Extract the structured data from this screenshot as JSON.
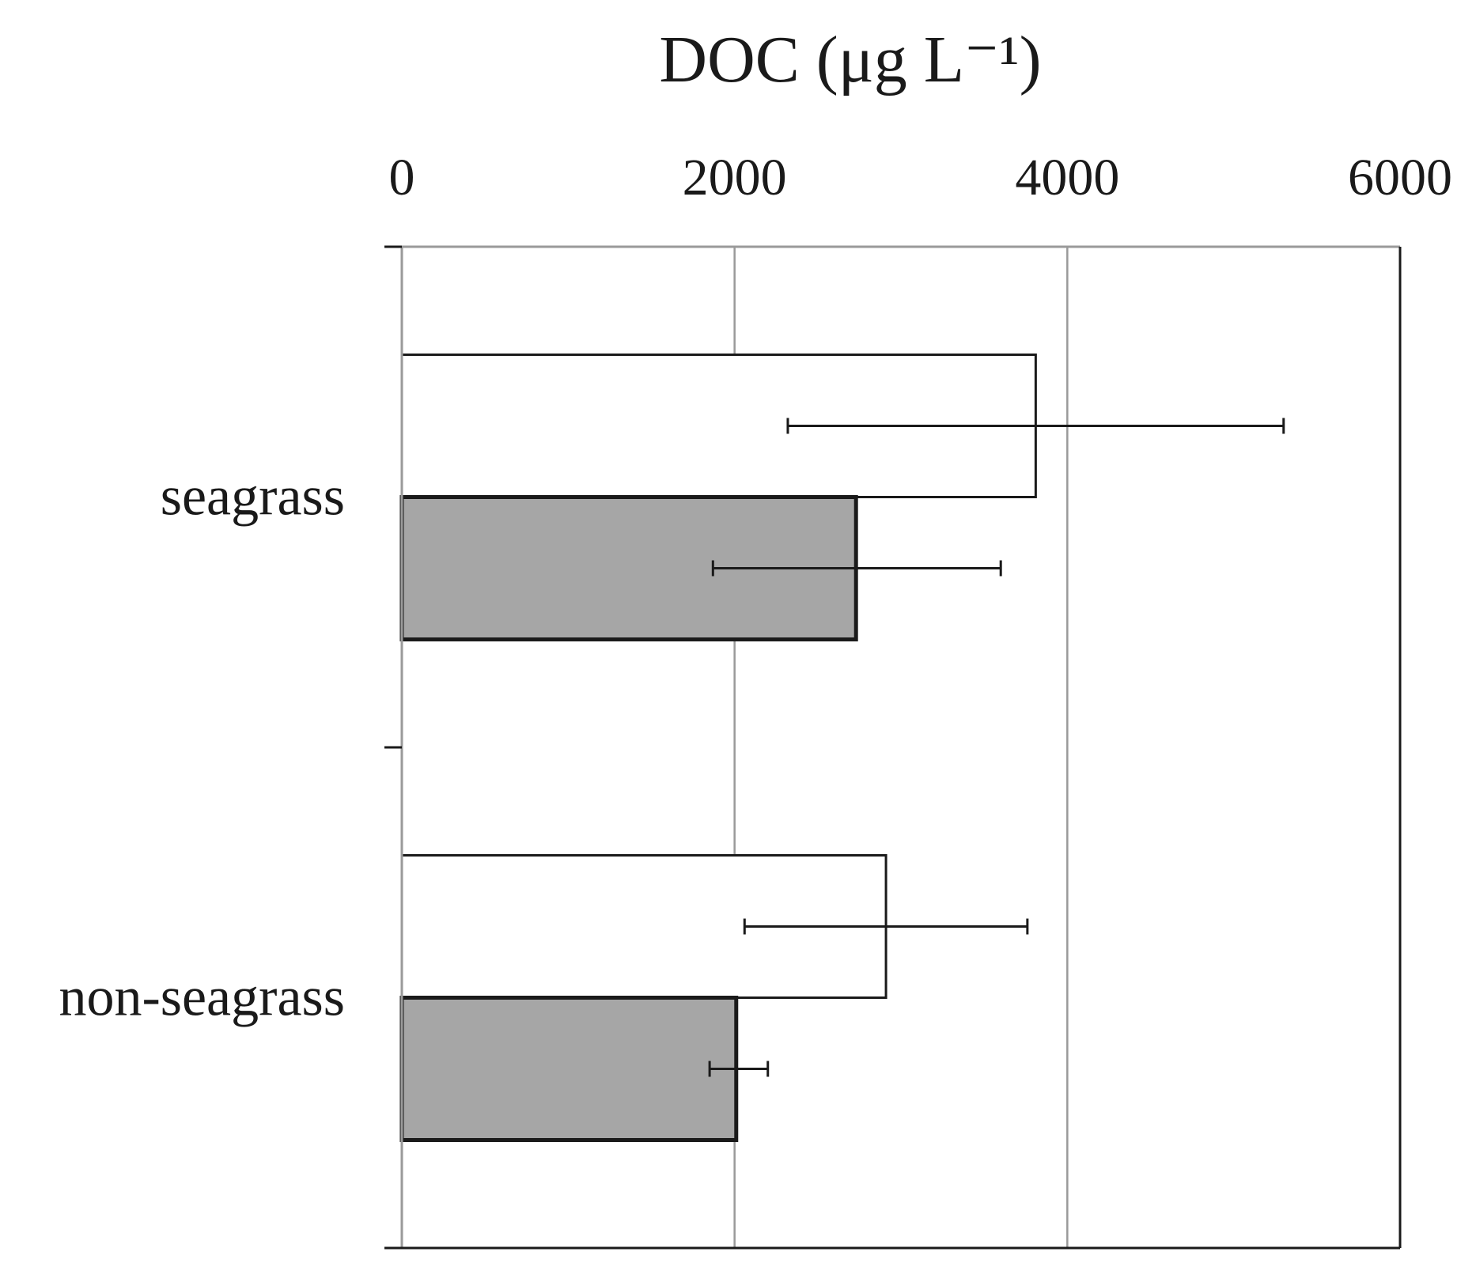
{
  "chart_data": {
    "type": "bar",
    "orientation": "horizontal",
    "title": "DOC (μg L⁻¹)",
    "xlabel": "DOC (μg L⁻¹)",
    "ylabel": "",
    "xlim": [
      0,
      6000
    ],
    "x_ticks": [
      0,
      2000,
      4000,
      6000
    ],
    "x_tick_labels": [
      "0",
      "2000",
      "4000",
      "6000"
    ],
    "x_axis_position": "top",
    "grid": true,
    "legend": "none",
    "categories": [
      "seagrass",
      "non-seagrass"
    ],
    "series": [
      {
        "fill": "#ffffff",
        "values": [
          3810,
          2910
        ],
        "error_low": [
          2320,
          2060
        ],
        "error_high": [
          5300,
          3760
        ]
      },
      {
        "fill": "#a6a6a6",
        "values": [
          2730,
          2010
        ],
        "error_low": [
          1870,
          1850
        ],
        "error_high": [
          3600,
          2200
        ]
      }
    ],
    "colors": {
      "grid": "#9a9a9a",
      "axis": "#1a1a1a",
      "bar_outline": "#1a1a1a"
    }
  }
}
